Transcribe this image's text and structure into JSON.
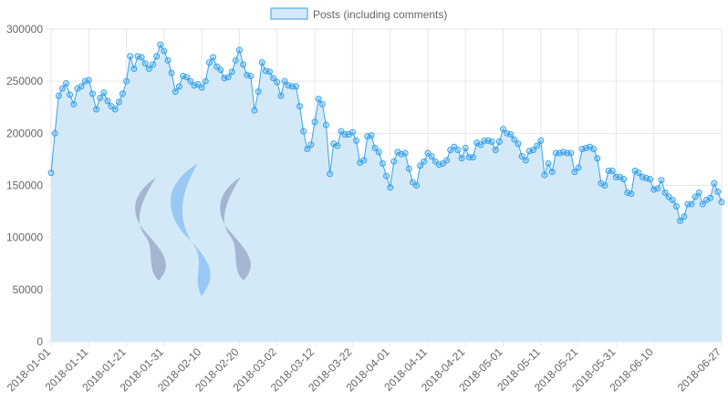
{
  "chart_data": {
    "type": "area",
    "title": "",
    "xlabel": "",
    "ylabel": "",
    "ylim": [
      0,
      300000
    ],
    "yticks": [
      0,
      50000,
      100000,
      150000,
      200000,
      250000,
      300000
    ],
    "ytick_labels": [
      "0",
      "50000",
      "100000",
      "150000",
      "200000",
      "250000",
      "300000"
    ],
    "xtick_labels": [
      "2018-01-01",
      "2018-01-11",
      "2018-01-21",
      "2018-01-31",
      "2018-02-10",
      "2018-02-20",
      "2018-03-02",
      "2018-03-12",
      "2018-03-22",
      "2018-04-01",
      "2018-04-11",
      "2018-04-21",
      "2018-05-01",
      "2018-05-11",
      "2018-05-21",
      "2018-05-31",
      "2018-06-10",
      "2018-06-27"
    ],
    "x_start": "2018-01-01",
    "x_end": "2018-06-27",
    "legend_position": "top-center",
    "grid": true,
    "colors": {
      "line": "#36a2eb",
      "fill": "#d4e9f8",
      "grid": "#e6e6e6",
      "axis_text": "#666666"
    },
    "series": [
      {
        "name": "Posts (including comments)",
        "values": [
          162000,
          200000,
          236000,
          243000,
          248000,
          237000,
          228000,
          243000,
          245000,
          250000,
          251000,
          238000,
          223000,
          234000,
          239000,
          231000,
          226000,
          223000,
          230000,
          238000,
          250000,
          274000,
          262000,
          274000,
          273000,
          267000,
          262000,
          266000,
          274000,
          285000,
          279000,
          270000,
          258000,
          240000,
          245000,
          255000,
          254000,
          250000,
          246000,
          247000,
          244000,
          250000,
          268000,
          273000,
          264000,
          261000,
          253000,
          254000,
          259000,
          270000,
          280000,
          266000,
          256000,
          255000,
          222000,
          240000,
          268000,
          260000,
          259000,
          253000,
          249000,
          236000,
          250000,
          246000,
          245000,
          245000,
          226000,
          202000,
          185000,
          189000,
          211000,
          233000,
          228000,
          208000,
          161000,
          190000,
          188000,
          202000,
          199000,
          199000,
          201000,
          193000,
          172000,
          174000,
          197000,
          198000,
          186000,
          182000,
          171000,
          159000,
          148000,
          173000,
          182000,
          180000,
          181000,
          166000,
          153000,
          150000,
          169000,
          173000,
          181000,
          178000,
          173000,
          170000,
          171000,
          174000,
          184000,
          187000,
          184000,
          176000,
          186000,
          177000,
          177000,
          191000,
          189000,
          193000,
          193000,
          192000,
          184000,
          192000,
          204000,
          200000,
          199000,
          194000,
          190000,
          178000,
          174000,
          183000,
          184000,
          188000,
          193000,
          160000,
          171000,
          163000,
          181000,
          181000,
          182000,
          181000,
          181000,
          163000,
          167000,
          185000,
          186000,
          187000,
          185000,
          176000,
          152000,
          150000,
          164000,
          164000,
          158000,
          158000,
          156000,
          143000,
          142000,
          164000,
          162000,
          158000,
          157000,
          156000,
          146000,
          147000,
          155000,
          143000,
          139000,
          136000,
          130000,
          116000,
          120000,
          132000,
          132000,
          139000,
          143000,
          132000,
          136000,
          138000,
          152000,
          144000,
          134000
        ]
      }
    ]
  }
}
